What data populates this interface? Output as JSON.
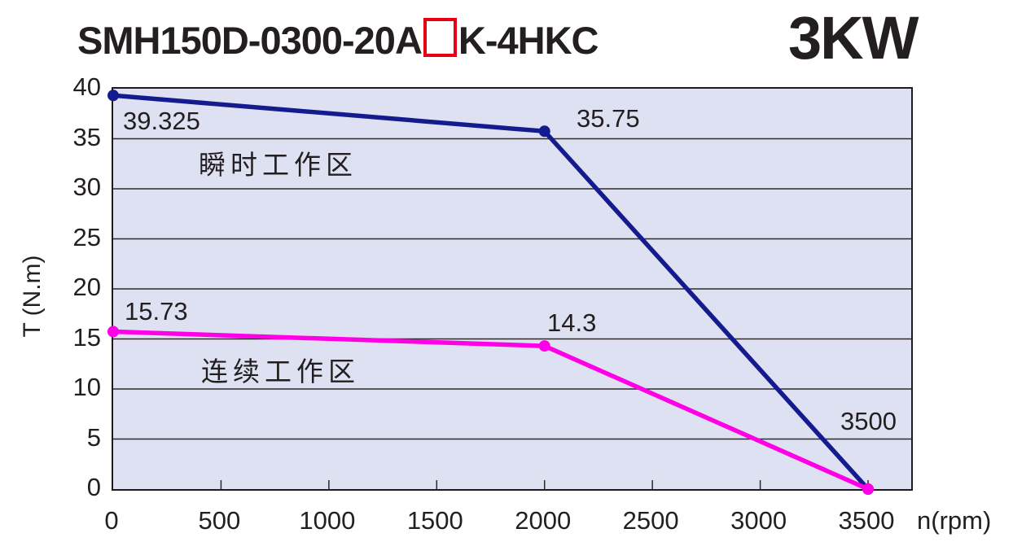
{
  "header": {
    "model_prefix": "SMH150D-0300-20A",
    "model_suffix": "K-4HKC",
    "placeholder_box": "option-placeholder-square",
    "power": "3KW"
  },
  "colors": {
    "instant_line": "#141b8f",
    "continuous_line": "#ff00e6",
    "plot_background": "#dee1f1",
    "grid_line": "#2e2a2b",
    "text": "#231f20",
    "placeholder_red": "#e60012"
  },
  "chart_data": {
    "type": "line",
    "title": "SMH150D-0300-20A□K-4HKC  3KW torque-speed curve",
    "xlabel": "n(rpm)",
    "ylabel": "T (N.m)",
    "xlim": [
      0,
      3700
    ],
    "ylim": [
      0,
      40
    ],
    "xticks": [
      0,
      500,
      1000,
      1500,
      2000,
      2500,
      3000,
      3500
    ],
    "yticks": [
      0,
      5,
      10,
      15,
      20,
      25,
      30,
      35,
      40
    ],
    "grid": true,
    "legend_position": "inline-annotations",
    "series": [
      {
        "name": "瞬时工作区",
        "color": "#141b8f",
        "x": [
          0,
          2000,
          3500
        ],
        "y": [
          39.325,
          35.75,
          0
        ]
      },
      {
        "name": "连续工作区",
        "color": "#ff00e6",
        "x": [
          0,
          2000,
          3500
        ],
        "y": [
          15.73,
          14.3,
          0
        ]
      }
    ],
    "annotations": {
      "instant_start": "39.325",
      "instant_knee": "35.75",
      "instant_zone": "瞬时工作区",
      "continuous_start": "15.73",
      "continuous_knee": "14.3",
      "continuous_zone": "连续工作区",
      "max_speed": "3500"
    }
  }
}
